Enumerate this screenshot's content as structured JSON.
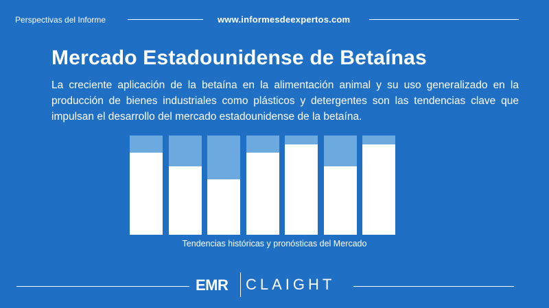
{
  "header": {
    "left_label": "Perspectivas del Informe",
    "website": "www.informesdeexpertos.com"
  },
  "title": "Mercado Estadounidense de Betaínas",
  "description": "La creciente aplicación de la betaína en la alimentación animal y su uso generalizado en la producción de bienes industriales como plásticos y detergentes son las tendencias clave que impulsan el desarrollo del mercado estadounidense de la betaína.",
  "chart_data": {
    "type": "bar",
    "title": "",
    "caption": "Tendencias históricas y pronósticas del Mercado",
    "series": [
      {
        "values": [
          0.83,
          0.69,
          0.56,
          0.83,
          0.91,
          0.69,
          0.91
        ]
      }
    ],
    "colors": {
      "fill": "#ffffff",
      "background_bar": "#6ba9df"
    }
  },
  "footer": {
    "logo_left": "EMR",
    "logo_right": "CLAIGHT"
  },
  "colors": {
    "background": "#1f6fc5",
    "text": "#ffffff"
  }
}
